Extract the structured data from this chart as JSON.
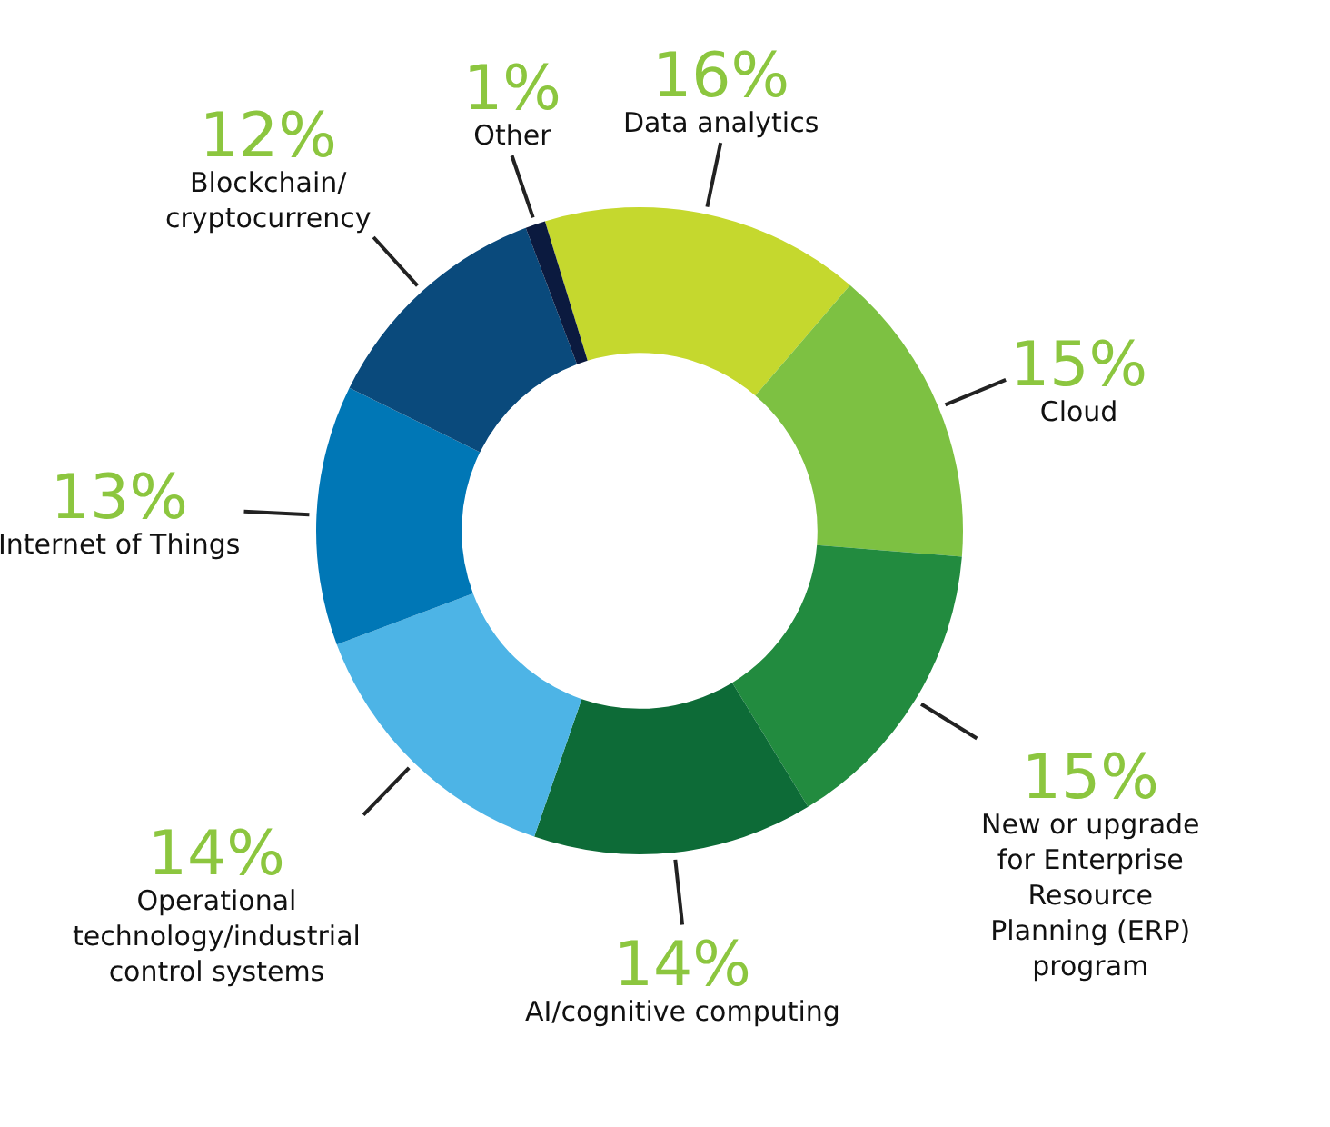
{
  "chart_data": {
    "type": "donut",
    "categories": [
      "Data analytics",
      "Cloud",
      "New or upgrade for Enterprise Resource Planning (ERP) program",
      "AI/cognitive computing",
      "Operational technology/industrial control systems",
      "Internet of Things",
      "Blockchain/ cryptocurrency",
      "Other"
    ],
    "values": [
      16,
      15,
      15,
      14,
      14,
      13,
      12,
      1
    ],
    "value_labels": [
      "16%",
      "15%",
      "15%",
      "14%",
      "14%",
      "13%",
      "12%",
      "1%"
    ],
    "colors": [
      "#c5d82e",
      "#7dc142",
      "#228b3f",
      "#0d6b37",
      "#4db4e6",
      "#0077b6",
      "#0a4a7c",
      "#0b1a3f"
    ]
  }
}
